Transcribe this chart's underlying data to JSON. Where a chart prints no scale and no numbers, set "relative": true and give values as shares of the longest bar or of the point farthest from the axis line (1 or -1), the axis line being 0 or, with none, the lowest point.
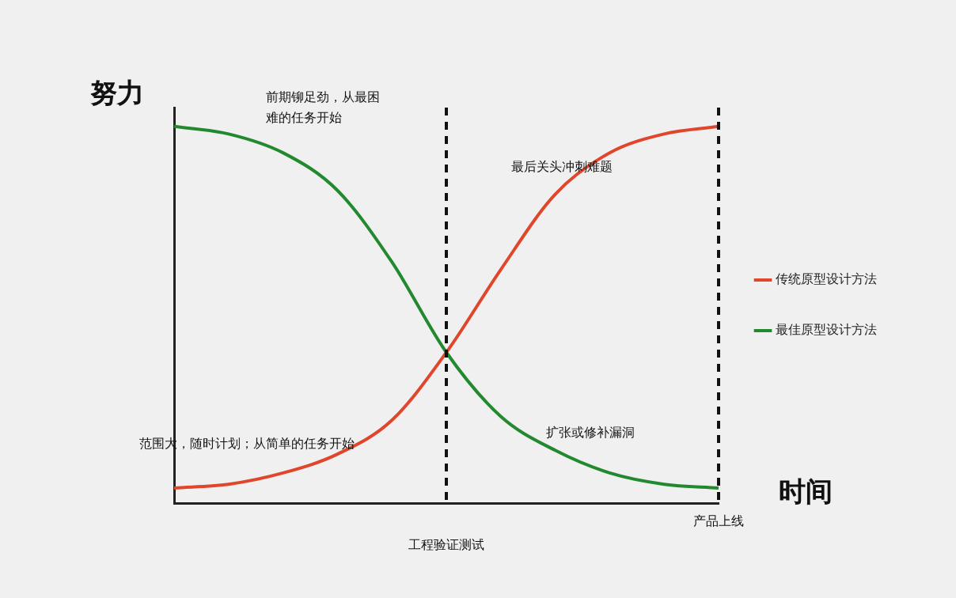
{
  "chart_data": {
    "type": "line",
    "relative": true,
    "xlabel": "时间",
    "ylabel": "努力",
    "categories": [
      null,
      null,
      null,
      null,
      null,
      null,
      null,
      null,
      null,
      null,
      null
    ],
    "series": [
      {
        "name": "传统原型设计方法",
        "color": "#e0462c",
        "values": [
          0.04,
          0.05,
          0.08,
          0.13,
          0.22,
          0.4,
          0.62,
          0.82,
          0.93,
          0.98,
          1
        ]
      },
      {
        "name": "最佳原型设计方法",
        "color": "#22892f",
        "values": [
          1,
          0.98,
          0.93,
          0.83,
          0.64,
          0.4,
          0.23,
          0.14,
          0.08,
          0.05,
          0.04
        ]
      }
    ],
    "annotations": [
      "前期铆足劲，从最困难的任务开始",
      "最后关头冲刺难题",
      "范围大，随时计划；从简单的任务开始",
      "扩张或修补漏洞",
      "工程验证测试",
      "产品上线"
    ],
    "legend": "right",
    "grid": false,
    "marker": "none",
    "line_style": "solid"
  }
}
